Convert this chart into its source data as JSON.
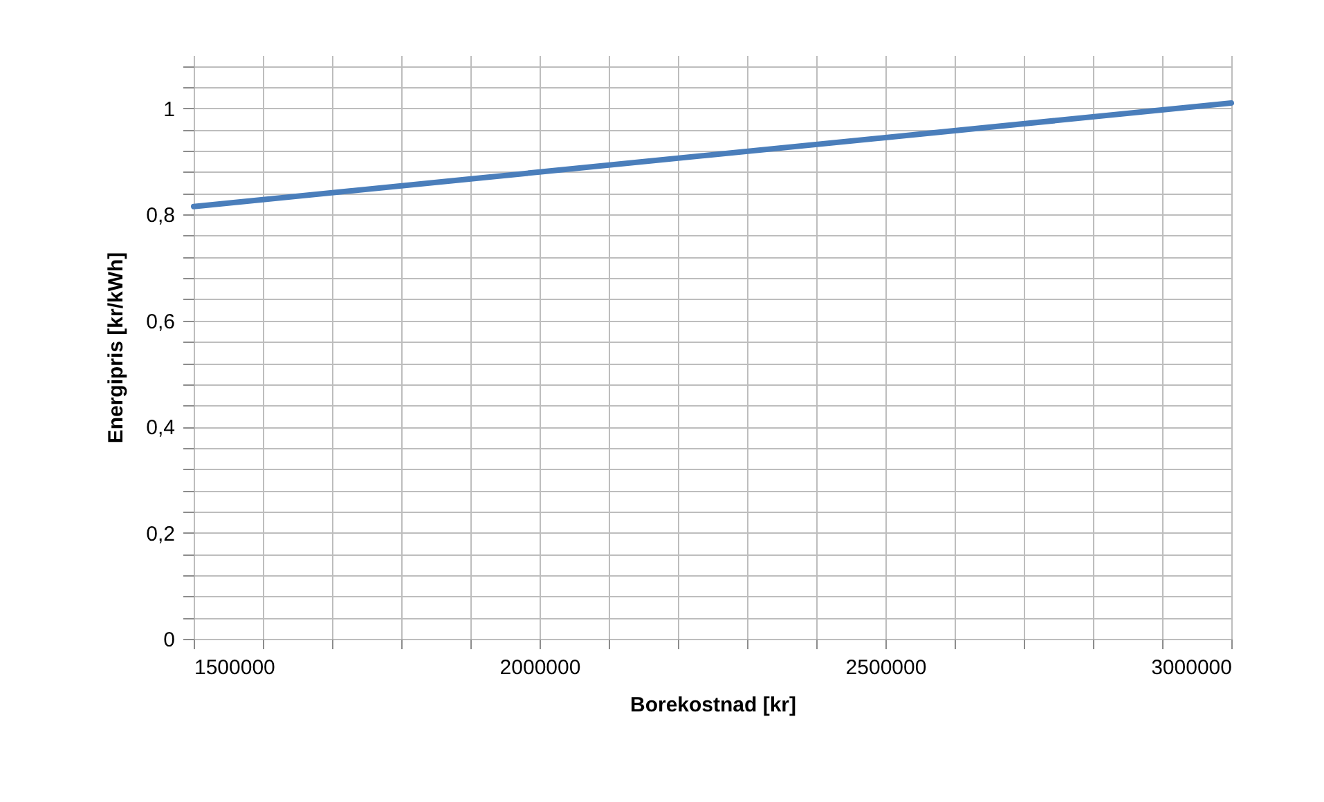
{
  "chart_data": {
    "type": "line",
    "xlabel": "Borekostnad [kr]",
    "ylabel": "Energipris [kr/kWh]",
    "x": [
      1500000,
      2000000,
      2500000,
      3000000
    ],
    "series": [
      {
        "color": "#4a7ebb",
        "values": [
          0.815,
          0.88,
          0.945,
          1.01
        ]
      }
    ],
    "xlim": [
      1500000,
      3000000
    ],
    "xticks": [
      1500000,
      {
        "value": 1600000,
        "label": null
      },
      {
        "value": 1700000,
        "label": null
      },
      {
        "value": 1800000,
        "label": null
      },
      {
        "value": 1900000,
        "label": null
      },
      2000000,
      {
        "value": 2100000,
        "label": null
      },
      {
        "value": 2200000,
        "label": null
      },
      {
        "value": 2300000,
        "label": null
      },
      {
        "value": 2400000,
        "label": null
      },
      2500000,
      {
        "value": 2600000,
        "label": null
      },
      {
        "value": 2700000,
        "label": null
      },
      {
        "value": 2800000,
        "label": null
      },
      {
        "value": 2900000,
        "label": null
      },
      3000000
    ],
    "ylim": [
      0,
      1.1
    ],
    "yticks": [
      0,
      {
        "value": 0.04,
        "label": null
      },
      {
        "value": 0.08,
        "label": null
      },
      {
        "value": 0.12,
        "label": null
      },
      {
        "value": 0.16,
        "label": null
      },
      {
        "value": 0.2,
        "label": "0,2"
      },
      {
        "value": 0.24,
        "label": null
      },
      {
        "value": 0.28,
        "label": null
      },
      {
        "value": 0.32,
        "label": null
      },
      {
        "value": 0.36,
        "label": null
      },
      {
        "value": 0.4,
        "label": "0,4"
      },
      {
        "value": 0.44,
        "label": null
      },
      {
        "value": 0.48,
        "label": null
      },
      {
        "value": 0.52,
        "label": null
      },
      {
        "value": 0.56,
        "label": null
      },
      {
        "value": 0.6,
        "label": "0,6"
      },
      {
        "value": 0.64,
        "label": null
      },
      {
        "value": 0.68,
        "label": null
      },
      {
        "value": 0.72,
        "label": null
      },
      {
        "value": 0.76,
        "label": null
      },
      {
        "value": 0.8,
        "label": "0,8"
      },
      {
        "value": 0.84,
        "label": null
      },
      {
        "value": 0.88,
        "label": null
      },
      {
        "value": 0.92,
        "label": null
      },
      {
        "value": 0.96,
        "label": null
      },
      1,
      {
        "value": 1.04,
        "label": null
      },
      {
        "value": 1.08,
        "label": null
      }
    ],
    "grid": true,
    "marker": "none",
    "line_style": "solid"
  }
}
